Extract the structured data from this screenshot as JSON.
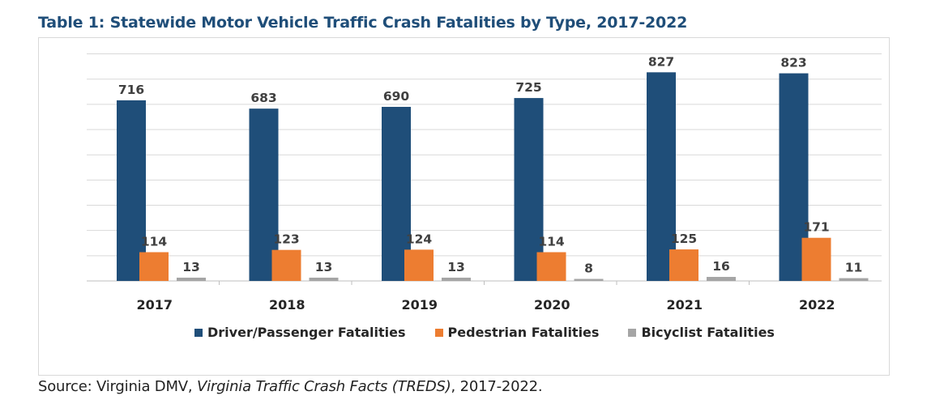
{
  "title": "Table 1: Statewide Motor Vehicle Traffic Crash Fatalities by Type, 2017-2022",
  "source": {
    "prefix": "Source: Virginia DMV, ",
    "italic": "Virginia Traffic Crash Facts (TREDS)",
    "suffix": ", 2017-2022."
  },
  "legend": {
    "driver": "Driver/Passenger Fatalities",
    "pedestrian": "Pedestrian Fatalities",
    "bicyclist": "Bicyclist Fatalities"
  },
  "colors": {
    "driver": "#1f4e79",
    "pedestrian": "#ed7d31",
    "bicyclist": "#a5a5a5",
    "title": "#1f4e79"
  },
  "chart_data": {
    "type": "bar",
    "categories": [
      "2017",
      "2018",
      "2019",
      "2020",
      "2021",
      "2022"
    ],
    "series": [
      {
        "name": "Driver/Passenger Fatalities",
        "values": [
          716,
          683,
          690,
          725,
          827,
          823
        ]
      },
      {
        "name": "Pedestrian Fatalities",
        "values": [
          114,
          123,
          124,
          114,
          125,
          171
        ]
      },
      {
        "name": "Bicyclist Fatalities",
        "values": [
          13,
          13,
          13,
          8,
          16,
          11
        ]
      }
    ],
    "ylim": [
      0,
      900
    ],
    "grid": true,
    "legend_position": "bottom"
  }
}
